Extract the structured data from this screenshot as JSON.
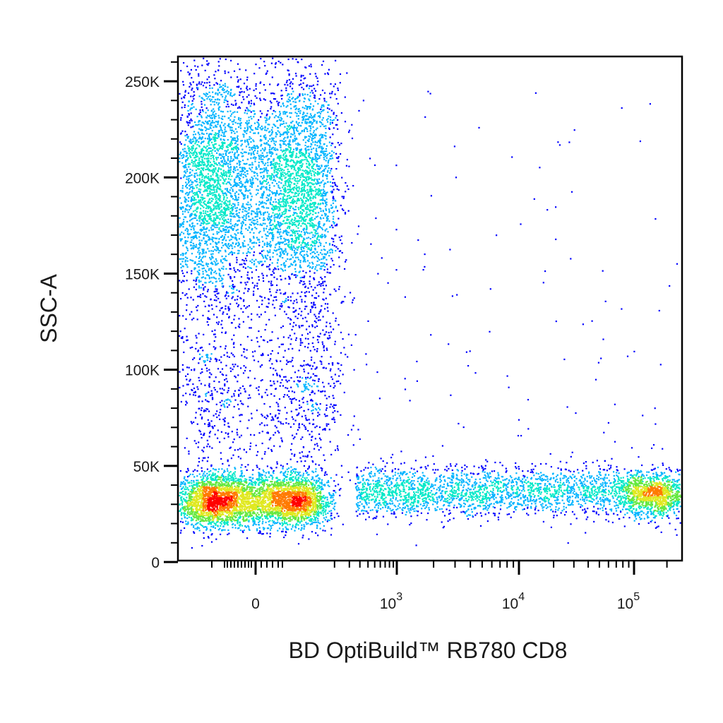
{
  "chart_data": {
    "type": "scatter",
    "subtype": "flow-cytometry pseudocolor density dot plot",
    "xlabel": "BD OptiBuild™ RB780 CD8",
    "ylabel": "SSC-A",
    "x_scale": "biexponential",
    "xlim": [
      -200,
      150000
    ],
    "ylim": [
      0,
      262144
    ],
    "x_ticks": [
      {
        "value": 0,
        "base": "0",
        "exp": ""
      },
      {
        "value": 1000,
        "base": "10",
        "exp": "3"
      },
      {
        "value": 10000,
        "base": "10",
        "exp": "4"
      },
      {
        "value": 100000,
        "base": "10",
        "exp": "5"
      }
    ],
    "y_ticks": [
      {
        "value": 0,
        "label": "0"
      },
      {
        "value": 50000,
        "label": "50K"
      },
      {
        "value": 100000,
        "label": "100K"
      },
      {
        "value": 150000,
        "label": "150K"
      },
      {
        "value": 200000,
        "label": "200K"
      },
      {
        "value": 250000,
        "label": "250K"
      }
    ],
    "grid": false,
    "legend": "none",
    "density_colormap": [
      "#0000ff",
      "#00b4ff",
      "#00e8c8",
      "#66e840",
      "#e0e820",
      "#ff7a00",
      "#ff0000"
    ],
    "populations": [
      {
        "id": "CD8-negative, high SSC",
        "x_center": 0,
        "y_center": 195000,
        "x_sd": 55,
        "y_sd": 32000,
        "count": 5600
      },
      {
        "id": "CD8-negative, low SSC",
        "x_center": -5,
        "y_center": 32000,
        "x_sd": 45,
        "y_sd": 7000,
        "count": 4200
      },
      {
        "id": "CD8-negative, intermediate SSC",
        "x_center": 10,
        "y_center": 90000,
        "x_sd": 60,
        "y_sd": 25000,
        "count": 1000
      },
      {
        "id": "CD8-positive, low SSC",
        "x_center": 80000,
        "y_center": 35000,
        "x_spread_log10": 0.14,
        "y_sd": 6000,
        "count": 1100
      },
      {
        "id": "CD8 intermediate, low SSC",
        "x_range": [
          200,
          60000
        ],
        "y_center": 37000,
        "y_sd": 6500,
        "count": 2300
      },
      {
        "id": "scattered events",
        "x_range": [
          100,
          120000
        ],
        "y_range": [
          5000,
          255000
        ],
        "count": 160
      }
    ]
  }
}
